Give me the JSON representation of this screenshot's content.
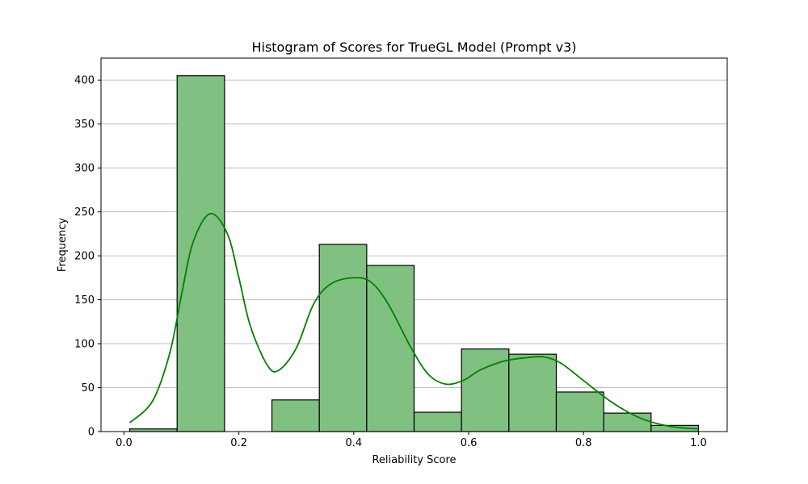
{
  "chart_data": {
    "type": "bar",
    "title": "Histogram of Scores for TrueGL Model (Prompt v3)",
    "xlabel": "Reliability Score",
    "ylabel": "Frequency",
    "xlim": [
      -0.04,
      1.05
    ],
    "ylim": [
      0,
      425
    ],
    "grid": "y",
    "bar_color": "#80c080",
    "bar_edge_color": "#000000",
    "kde_color": "#008000",
    "x_ticks": [
      0.0,
      0.2,
      0.4,
      0.6,
      0.8,
      1.0
    ],
    "x_tick_labels": [
      "0.0",
      "0.2",
      "0.4",
      "0.6",
      "0.8",
      "1.0"
    ],
    "y_ticks": [
      0,
      50,
      100,
      150,
      200,
      250,
      300,
      350,
      400
    ],
    "y_tick_labels": [
      "0",
      "50",
      "100",
      "150",
      "200",
      "250",
      "300",
      "350",
      "400"
    ],
    "bins": [
      {
        "x0": 0.01,
        "x1": 0.0925,
        "count": 3
      },
      {
        "x0": 0.0925,
        "x1": 0.175,
        "count": 405
      },
      {
        "x0": 0.175,
        "x1": 0.2575,
        "count": 0
      },
      {
        "x0": 0.2575,
        "x1": 0.34,
        "count": 36
      },
      {
        "x0": 0.34,
        "x1": 0.4225,
        "count": 213
      },
      {
        "x0": 0.4225,
        "x1": 0.505,
        "count": 189
      },
      {
        "x0": 0.505,
        "x1": 0.5875,
        "count": 22
      },
      {
        "x0": 0.5875,
        "x1": 0.67,
        "count": 94
      },
      {
        "x0": 0.67,
        "x1": 0.7525,
        "count": 88
      },
      {
        "x0": 0.7525,
        "x1": 0.835,
        "count": 45
      },
      {
        "x0": 0.835,
        "x1": 0.9175,
        "count": 21
      },
      {
        "x0": 0.9175,
        "x1": 1.0,
        "count": 7
      }
    ],
    "kde": {
      "x": [
        0.01,
        0.05,
        0.08,
        0.1,
        0.12,
        0.15,
        0.18,
        0.2,
        0.22,
        0.25,
        0.27,
        0.3,
        0.33,
        0.36,
        0.4,
        0.43,
        0.46,
        0.5,
        0.53,
        0.56,
        0.59,
        0.62,
        0.66,
        0.7,
        0.73,
        0.76,
        0.8,
        0.85,
        0.9,
        0.95,
        1.0
      ],
      "y": [
        10,
        35,
        90,
        155,
        215,
        248,
        225,
        175,
        120,
        75,
        70,
        95,
        145,
        168,
        175,
        170,
        145,
        95,
        65,
        54,
        58,
        70,
        80,
        84,
        85,
        78,
        58,
        33,
        15,
        6,
        3
      ]
    }
  }
}
